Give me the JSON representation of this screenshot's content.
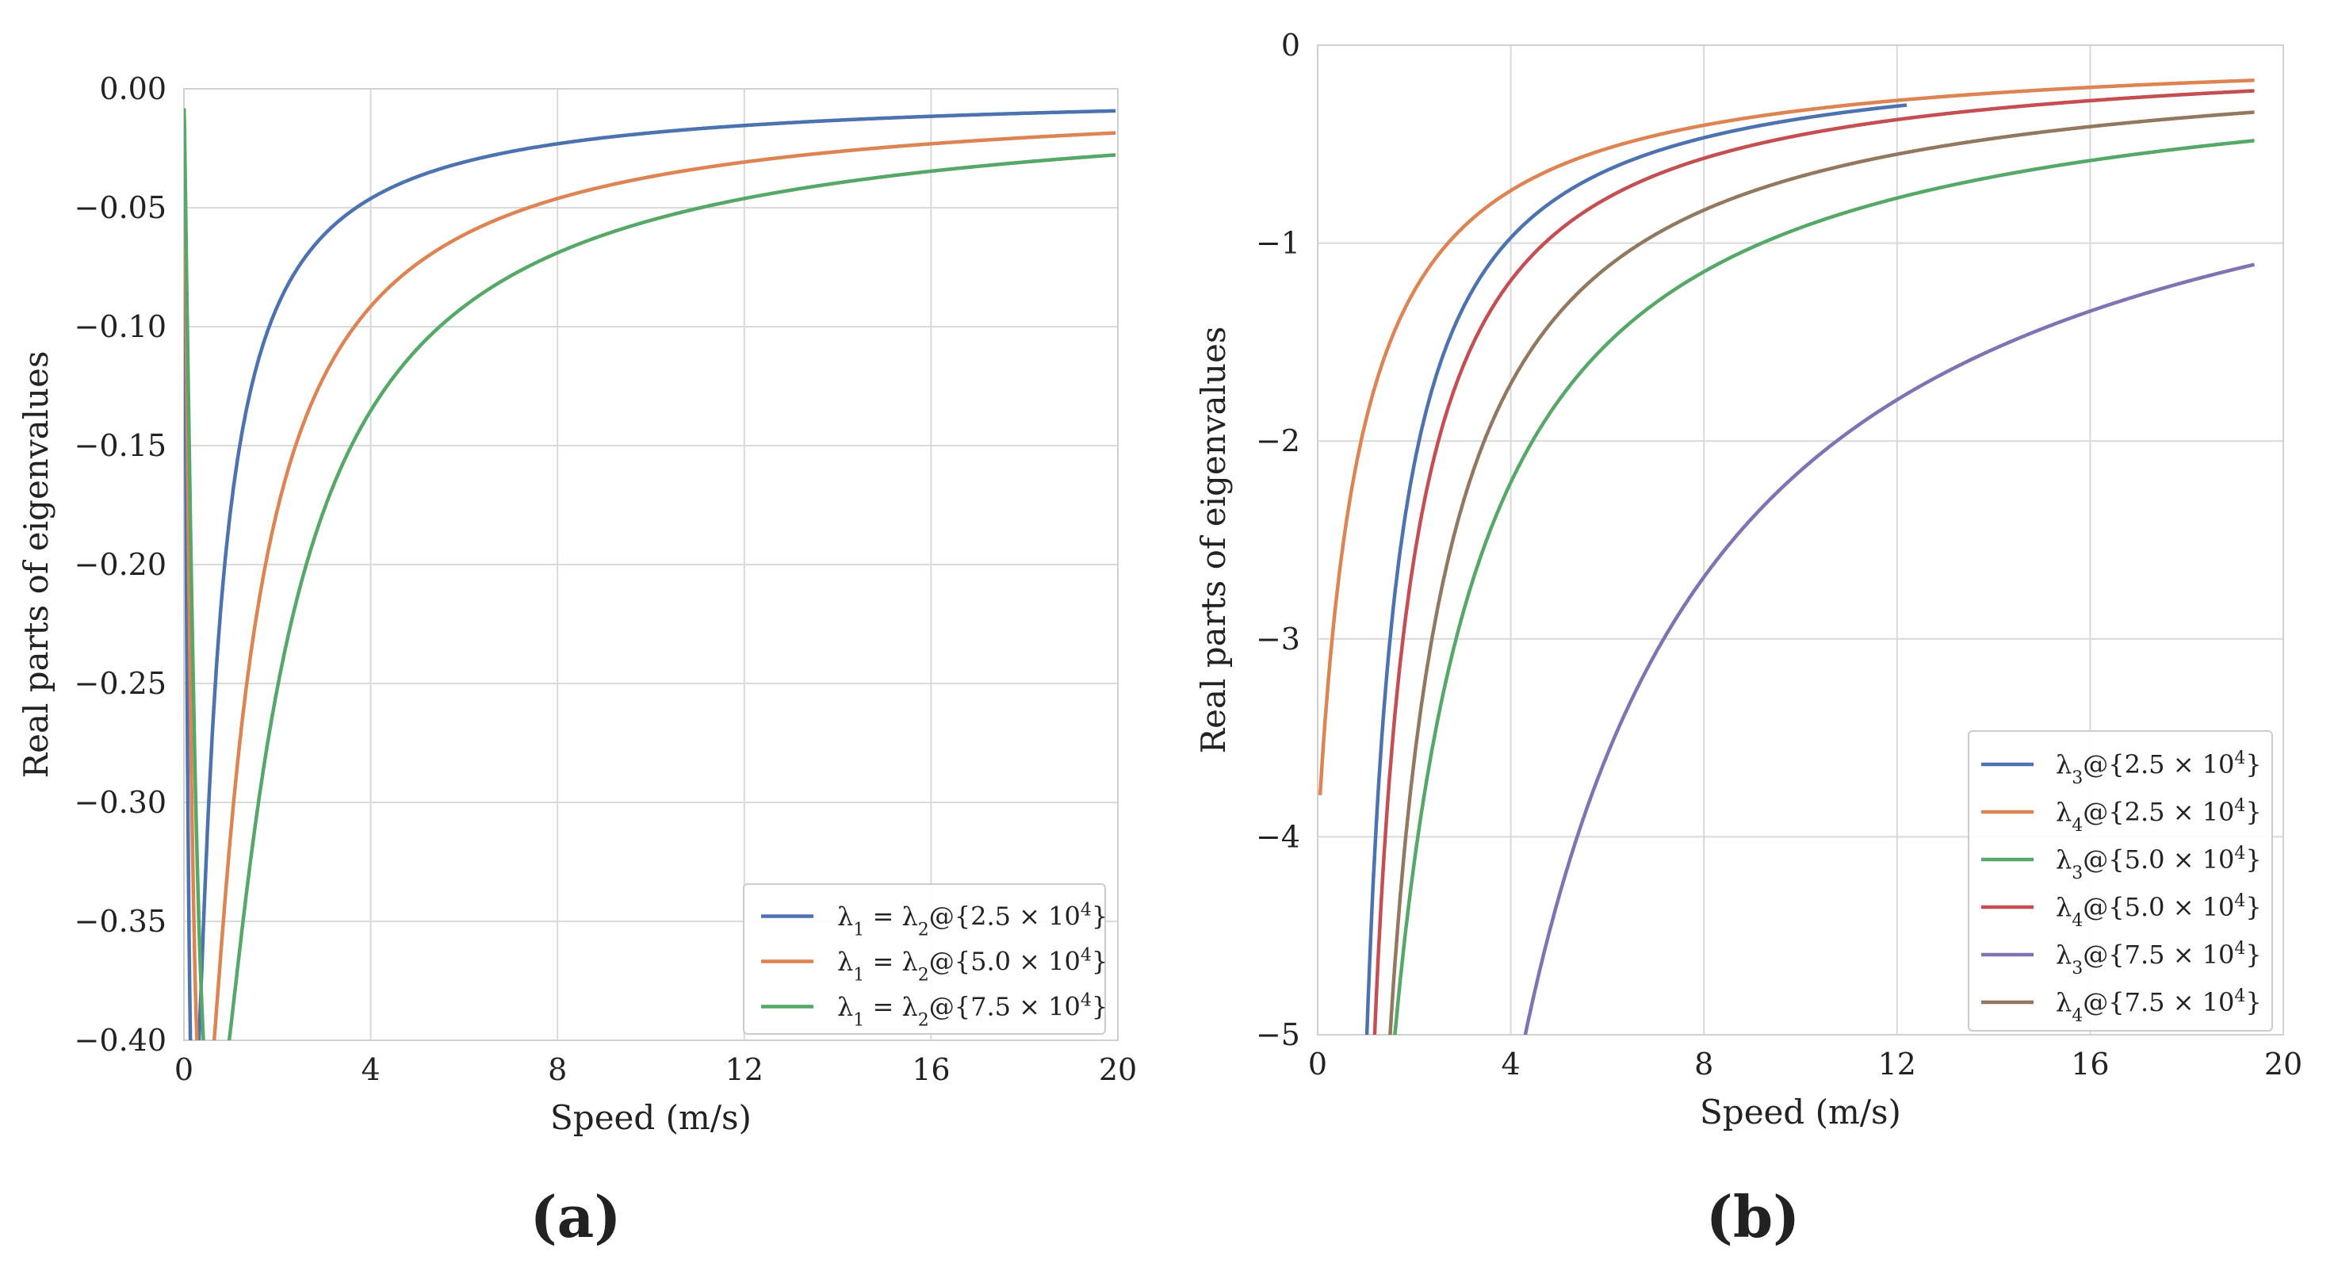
{
  "figure": {
    "panels": [
      {
        "label": "(a)"
      },
      {
        "label": "(b)"
      }
    ]
  },
  "chart_data": [
    {
      "type": "line",
      "panel": "(a)",
      "xlabel": "Speed (m/s)",
      "ylabel": "Real parts of eigenvalues",
      "xlim": [
        0,
        20
      ],
      "ylim": [
        -0.4,
        0.0
      ],
      "xticks": [
        0,
        4,
        8,
        12,
        16,
        20
      ],
      "xtick_labels": [
        "0",
        "4",
        "8",
        "12",
        "16",
        "20"
      ],
      "yticks": [
        0.0,
        -0.05,
        -0.1,
        -0.15,
        -0.2,
        -0.25,
        -0.3,
        -0.35,
        -0.4
      ],
      "ytick_labels": [
        "0.00",
        "−0.05",
        "−0.10",
        "−0.15",
        "−0.20",
        "−0.25",
        "−0.30",
        "−0.35",
        "−0.40"
      ],
      "grid": true,
      "legend_position": "bottom-right",
      "series": [
        {
          "name": "λ1 = λ2@{2.5 × 10^4}",
          "legend": [
            "λ",
            "1",
            " = λ",
            "2",
            "@{2.5 × 10",
            "4",
            "}"
          ],
          "color": "#4c72b0",
          "model": {
            "k": 0.25,
            "v0": 0.002
          }
        },
        {
          "name": "λ1 = λ2@{5.0 × 10^4}",
          "legend": [
            "λ",
            "1",
            " = λ",
            "2",
            "@{5.0 × 10",
            "4",
            "}"
          ],
          "color": "#dd8452",
          "model": {
            "k": 0.5,
            "v0": 0.004
          }
        },
        {
          "name": "λ1 = λ2@{7.5 × 10^4}",
          "legend": [
            "λ",
            "1",
            " = λ",
            "2",
            "@{7.5 × 10",
            "4",
            "}"
          ],
          "color": "#55a868",
          "model": {
            "k": 0.75,
            "v0": 0.006
          }
        }
      ]
    },
    {
      "type": "line",
      "panel": "(b)",
      "xlabel": "Speed (m/s)",
      "ylabel": "Real parts of eigenvalues",
      "xlim": [
        0,
        20
      ],
      "ylim": [
        -5,
        0
      ],
      "xticks": [
        0,
        4,
        8,
        12,
        16,
        20
      ],
      "xtick_labels": [
        "0",
        "4",
        "8",
        "12",
        "16",
        "20"
      ],
      "yticks": [
        0,
        -1,
        -2,
        -3,
        -4,
        -5
      ],
      "ytick_labels": [
        "0",
        "−1",
        "−2",
        "−3",
        "−4",
        "−5"
      ],
      "grid": true,
      "legend_position": "bottom-right",
      "series": [
        {
          "name": "λ3@{2.5 × 10^4}",
          "legend": [
            "λ",
            "3",
            "@{2.5 × 10",
            "4",
            "}"
          ],
          "color": "#4c72b0",
          "model": {
            "a": 3.6,
            "b": -0.3,
            "x_end": 12.2
          }
        },
        {
          "name": "λ4@{2.5 × 10^4}",
          "legend": [
            "λ",
            "4",
            "@{2.5 × 10",
            "4",
            "}"
          ],
          "color": "#dd8452",
          "model": {
            "a": 3.6,
            "b": 0.9
          }
        },
        {
          "name": "λ3@{5.0 × 10^4}",
          "legend": [
            "λ",
            "3",
            "@{5.0 × 10",
            "4",
            "}"
          ],
          "color": "#55a868",
          "model": {
            "a": 9.5,
            "b": 0.3
          }
        },
        {
          "name": "λ4@{5.0 × 10^4}",
          "legend": [
            "λ",
            "4",
            "@{5.0 × 10",
            "4",
            "}"
          ],
          "color": "#c44e52",
          "model": {
            "a": 4.4,
            "b": -0.3
          }
        },
        {
          "name": "λ3@{7.5 × 10^4}",
          "legend": [
            "λ",
            "3",
            "@{7.5 × 10",
            "4",
            "}"
          ],
          "color": "#8172b2",
          "model": {
            "a": 21.5,
            "b": 0.0
          }
        },
        {
          "name": "λ4@{7.5 × 10^4}",
          "legend": [
            "λ",
            "4",
            "@{7.5 × 10",
            "4",
            "}"
          ],
          "color": "#937860",
          "model": {
            "a": 6.5,
            "b": -0.2
          }
        }
      ]
    }
  ]
}
